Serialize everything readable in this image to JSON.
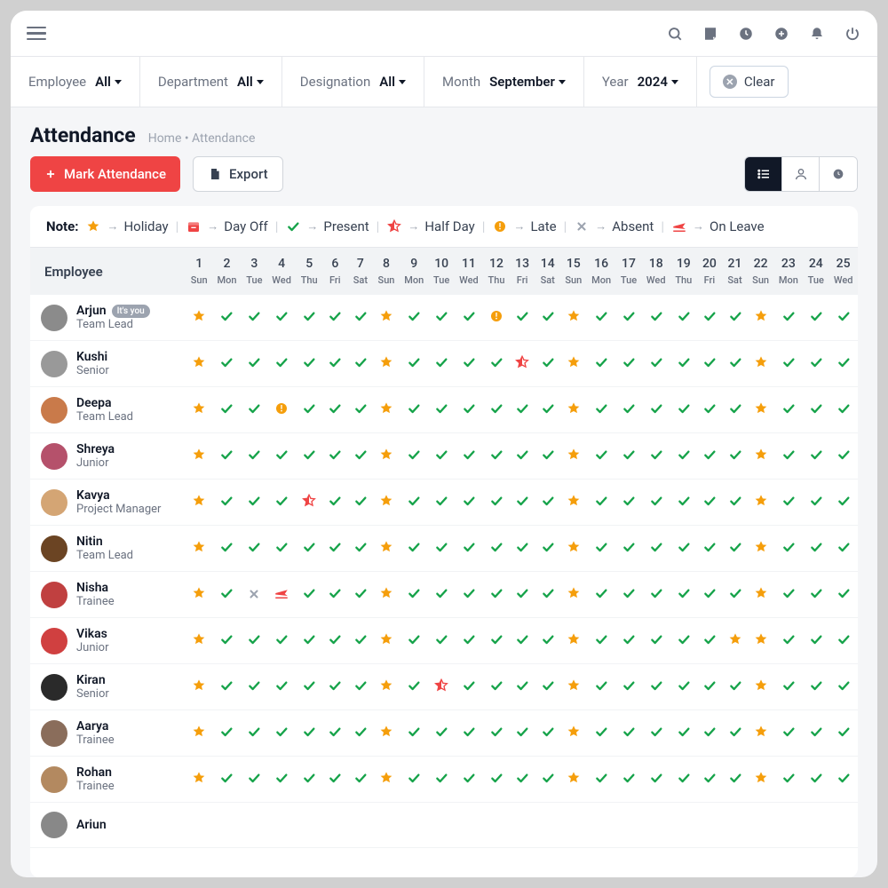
{
  "colors": {
    "present": "#16a34a",
    "holiday": "#f59e0b",
    "late": "#f59e0b",
    "halfday": "#ef4444",
    "absent": "#9ca3af",
    "onleave": "#ef4444",
    "dayoff_bg": "#ef4444"
  },
  "filters": [
    {
      "label": "Employee",
      "value": "All"
    },
    {
      "label": "Department",
      "value": "All"
    },
    {
      "label": "Designation",
      "value": "All"
    },
    {
      "label": "Month",
      "value": "September"
    },
    {
      "label": "Year",
      "value": "2024"
    }
  ],
  "clear_label": "Clear",
  "page_title": "Attendance",
  "breadcrumb": "Home • Attendance",
  "mark_btn": "Mark Attendance",
  "export_btn": "Export",
  "legend": {
    "note": "Note:",
    "items": [
      {
        "icon": "holiday",
        "label": "Holiday"
      },
      {
        "icon": "dayoff",
        "label": "Day Off"
      },
      {
        "icon": "present",
        "label": "Present"
      },
      {
        "icon": "halfday",
        "label": "Half Day"
      },
      {
        "icon": "late",
        "label": "Late"
      },
      {
        "icon": "absent",
        "label": "Absent"
      },
      {
        "icon": "onleave",
        "label": "On Leave"
      }
    ]
  },
  "employee_header": "Employee",
  "days": [
    {
      "n": "1",
      "d": "Sun"
    },
    {
      "n": "2",
      "d": "Mon"
    },
    {
      "n": "3",
      "d": "Tue"
    },
    {
      "n": "4",
      "d": "Wed"
    },
    {
      "n": "5",
      "d": "Thu"
    },
    {
      "n": "6",
      "d": "Fri"
    },
    {
      "n": "7",
      "d": "Sat"
    },
    {
      "n": "8",
      "d": "Sun"
    },
    {
      "n": "9",
      "d": "Mon"
    },
    {
      "n": "10",
      "d": "Tue"
    },
    {
      "n": "11",
      "d": "Wed"
    },
    {
      "n": "12",
      "d": "Thu"
    },
    {
      "n": "13",
      "d": "Fri"
    },
    {
      "n": "14",
      "d": "Sat"
    },
    {
      "n": "15",
      "d": "Sun"
    },
    {
      "n": "16",
      "d": "Mon"
    },
    {
      "n": "17",
      "d": "Tue"
    },
    {
      "n": "18",
      "d": "Wed"
    },
    {
      "n": "19",
      "d": "Thu"
    },
    {
      "n": "20",
      "d": "Fri"
    },
    {
      "n": "21",
      "d": "Sat"
    },
    {
      "n": "22",
      "d": "Sun"
    },
    {
      "n": "23",
      "d": "Mon"
    },
    {
      "n": "24",
      "d": "Tue"
    },
    {
      "n": "25",
      "d": "Wed"
    }
  ],
  "its_you": "It's you",
  "employees": [
    {
      "name": "Arjun",
      "role": "Team Lead",
      "you": true,
      "avatar": "#8b8b8b",
      "cells": [
        "H",
        "P",
        "P",
        "P",
        "P",
        "P",
        "P",
        "H",
        "P",
        "P",
        "P",
        "L",
        "P",
        "P",
        "H",
        "P",
        "P",
        "P",
        "P",
        "P",
        "P",
        "H",
        "P",
        "P",
        "P"
      ]
    },
    {
      "name": "Kushi",
      "role": "Senior",
      "avatar": "#999999",
      "cells": [
        "H",
        "P",
        "P",
        "P",
        "P",
        "P",
        "P",
        "H",
        "P",
        "P",
        "P",
        "P",
        "HD",
        "P",
        "H",
        "P",
        "P",
        "P",
        "P",
        "P",
        "P",
        "H",
        "P",
        "P",
        "P"
      ]
    },
    {
      "name": "Deepa",
      "role": "Team Lead",
      "avatar": "#c97a4a",
      "cells": [
        "H",
        "P",
        "P",
        "L",
        "P",
        "P",
        "P",
        "H",
        "P",
        "P",
        "P",
        "P",
        "P",
        "P",
        "H",
        "P",
        "P",
        "P",
        "P",
        "P",
        "P",
        "H",
        "P",
        "P",
        "P"
      ]
    },
    {
      "name": "Shreya",
      "role": "Junior",
      "avatar": "#b5516b",
      "cells": [
        "H",
        "P",
        "P",
        "P",
        "P",
        "P",
        "P",
        "H",
        "P",
        "P",
        "P",
        "P",
        "P",
        "P",
        "H",
        "P",
        "P",
        "P",
        "P",
        "P",
        "P",
        "H",
        "P",
        "P",
        "P"
      ]
    },
    {
      "name": "Kavya",
      "role": "Project Manager",
      "avatar": "#d4a574",
      "cells": [
        "H",
        "P",
        "P",
        "P",
        "HD",
        "P",
        "P",
        "H",
        "P",
        "P",
        "P",
        "P",
        "P",
        "P",
        "H",
        "P",
        "P",
        "P",
        "P",
        "P",
        "P",
        "H",
        "P",
        "P",
        "P"
      ]
    },
    {
      "name": "Nitin",
      "role": "Team Lead",
      "avatar": "#6b4423",
      "cells": [
        "H",
        "P",
        "P",
        "P",
        "P",
        "P",
        "P",
        "H",
        "P",
        "P",
        "P",
        "P",
        "P",
        "P",
        "H",
        "P",
        "P",
        "P",
        "P",
        "P",
        "P",
        "H",
        "P",
        "P",
        "P"
      ]
    },
    {
      "name": "Nisha",
      "role": "Trainee",
      "avatar": "#c04040",
      "cells": [
        "H",
        "P",
        "A",
        "OL",
        "P",
        "P",
        "P",
        "H",
        "P",
        "P",
        "P",
        "P",
        "P",
        "P",
        "H",
        "P",
        "P",
        "P",
        "P",
        "P",
        "P",
        "H",
        "P",
        "P",
        "P"
      ]
    },
    {
      "name": "Vikas",
      "role": "Junior",
      "avatar": "#d04040",
      "cells": [
        "H",
        "P",
        "P",
        "P",
        "P",
        "P",
        "P",
        "H",
        "P",
        "P",
        "P",
        "P",
        "P",
        "P",
        "H",
        "P",
        "P",
        "P",
        "P",
        "P",
        "H",
        "H",
        "P",
        "P",
        "P"
      ]
    },
    {
      "name": "Kiran",
      "role": "Senior",
      "avatar": "#2a2a2a",
      "cells": [
        "H",
        "P",
        "P",
        "P",
        "P",
        "P",
        "P",
        "H",
        "P",
        "HD",
        "P",
        "P",
        "P",
        "P",
        "H",
        "P",
        "P",
        "P",
        "P",
        "P",
        "P",
        "H",
        "P",
        "P",
        "P"
      ]
    },
    {
      "name": "Aarya",
      "role": "Trainee",
      "avatar": "#8a6d5b",
      "cells": [
        "H",
        "P",
        "P",
        "P",
        "P",
        "P",
        "P",
        "H",
        "P",
        "P",
        "P",
        "P",
        "P",
        "P",
        "H",
        "P",
        "P",
        "P",
        "P",
        "P",
        "P",
        "H",
        "P",
        "P",
        "P"
      ]
    },
    {
      "name": "Rohan",
      "role": "Trainee",
      "avatar": "#b38960",
      "cells": [
        "H",
        "P",
        "P",
        "P",
        "P",
        "P",
        "P",
        "H",
        "P",
        "P",
        "P",
        "P",
        "P",
        "P",
        "H",
        "P",
        "P",
        "P",
        "P",
        "P",
        "P",
        "H",
        "P",
        "P",
        "P"
      ]
    },
    {
      "name": "Ariun",
      "role": "",
      "avatar": "#888888",
      "cells": [
        "",
        "",
        "",
        "",
        "",
        "",
        "",
        "",
        "",
        "",
        "",
        "",
        "",
        "",
        "",
        "",
        "",
        "",
        "",
        "",
        "",
        "",
        "",
        "",
        ""
      ]
    }
  ]
}
